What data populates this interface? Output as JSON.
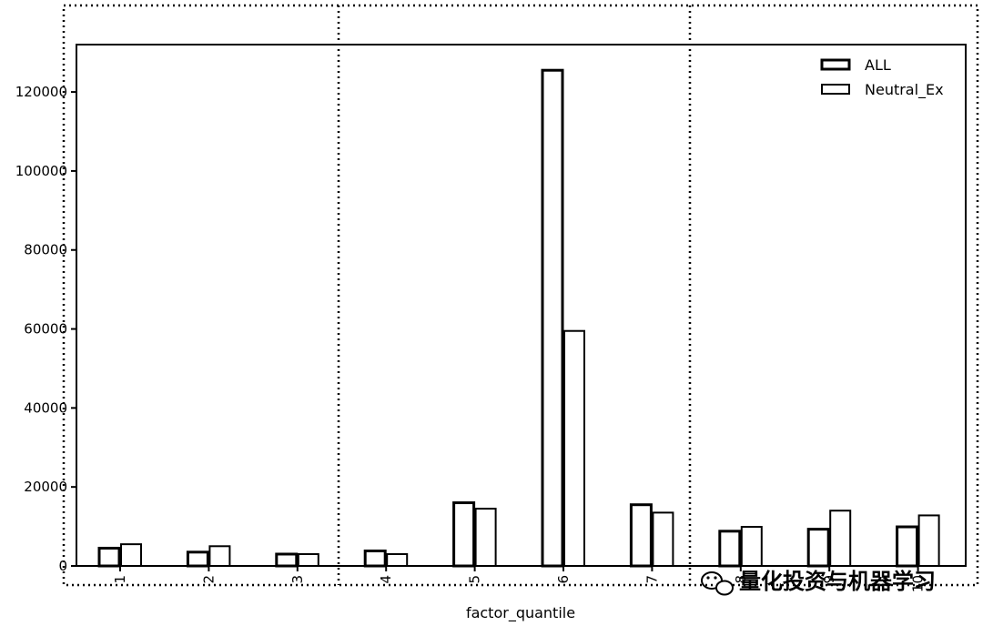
{
  "chart_data": {
    "type": "bar",
    "categories": [
      "1",
      "2",
      "3",
      "4",
      "5",
      "6",
      "7",
      "8",
      "9",
      "10"
    ],
    "series": [
      {
        "name": "ALL",
        "values": [
          4500,
          3500,
          3000,
          3800,
          16000,
          125500,
          15500,
          8800,
          9300,
          9900
        ]
      },
      {
        "name": "Neutral_Ex",
        "values": [
          5500,
          5000,
          3000,
          3000,
          14500,
          59500,
          13500,
          9900,
          14000,
          12800
        ]
      }
    ],
    "xlabel": "factor_quantile",
    "ylabel": "",
    "ylim": [
      0,
      132000
    ],
    "yticks": [
      0,
      20000,
      40000,
      60000,
      80000,
      100000,
      120000
    ],
    "ytick_labels": [
      "0",
      "20000",
      "40000",
      "60000",
      "80000",
      "100000",
      "120000"
    ],
    "legend_position": "top-right",
    "grid": false
  },
  "watermark": {
    "text": "量化投资与机器学习",
    "icon": "wechat-icon"
  }
}
